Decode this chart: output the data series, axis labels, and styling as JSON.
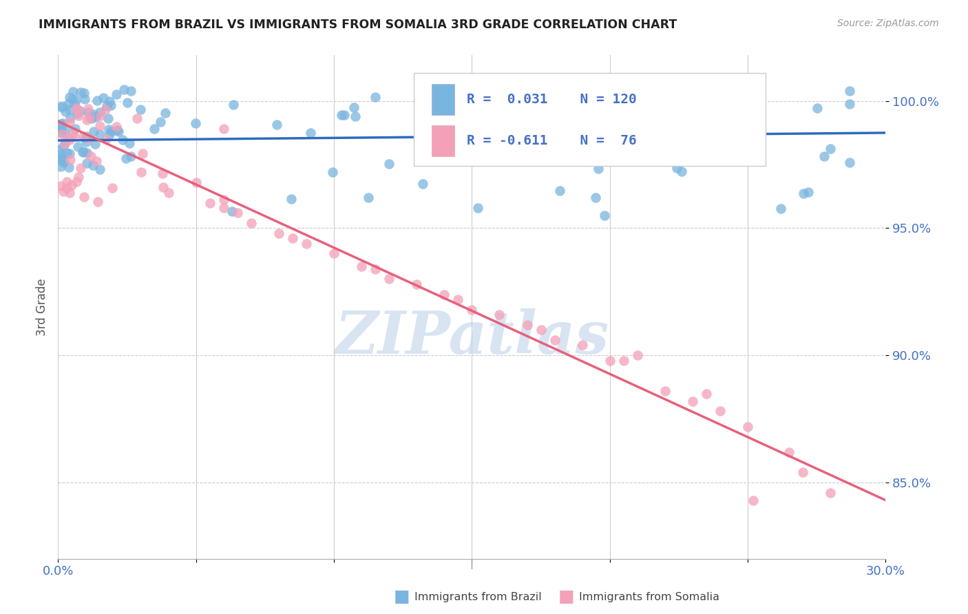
{
  "title": "IMMIGRANTS FROM BRAZIL VS IMMIGRANTS FROM SOMALIA 3RD GRADE CORRELATION CHART",
  "source": "Source: ZipAtlas.com",
  "ylabel": "3rd Grade",
  "ytick_labels": [
    "85.0%",
    "90.0%",
    "95.0%",
    "100.0%"
  ],
  "ytick_values": [
    0.85,
    0.9,
    0.95,
    1.0
  ],
  "xmin": 0.0,
  "xmax": 0.3,
  "ymin": 0.82,
  "ymax": 1.018,
  "brazil_color": "#7ab5e0",
  "somalia_color": "#f4a0b8",
  "brazil_line_color": "#2b6cbf",
  "somalia_line_color": "#e8607a",
  "brazil_R": 0.031,
  "brazil_N": 120,
  "somalia_R": -0.611,
  "somalia_N": 76,
  "watermark": "ZIPatlas",
  "brazil_line_x": [
    0.0,
    0.3
  ],
  "brazil_line_y": [
    0.9845,
    0.9875
  ],
  "somalia_line_x": [
    0.0,
    0.3
  ],
  "somalia_line_y": [
    0.992,
    0.843
  ]
}
